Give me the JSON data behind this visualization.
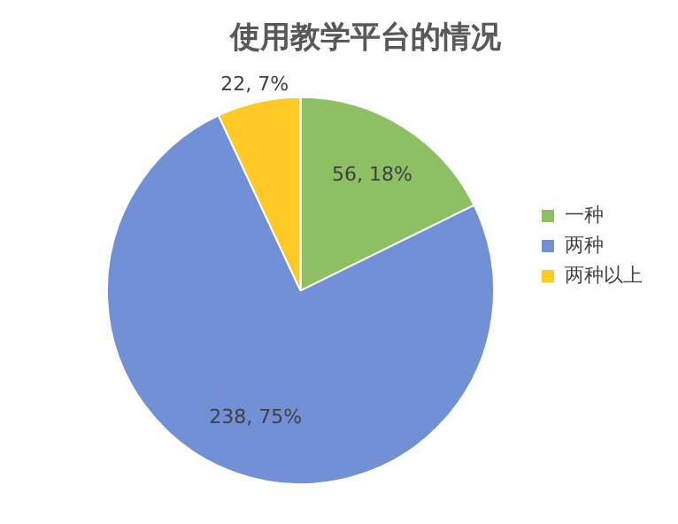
{
  "chart_data": {
    "type": "pie",
    "title": "使用教学平台的情况",
    "categories": [
      "一种",
      "两种",
      "两种以上"
    ],
    "values": [
      56,
      238,
      22
    ],
    "colors": [
      "#8cc063",
      "#7290d6",
      "#ffc926"
    ],
    "value_labels": [
      "56, 18%",
      "238, 75%",
      "22, 7%"
    ],
    "legend": "right"
  }
}
